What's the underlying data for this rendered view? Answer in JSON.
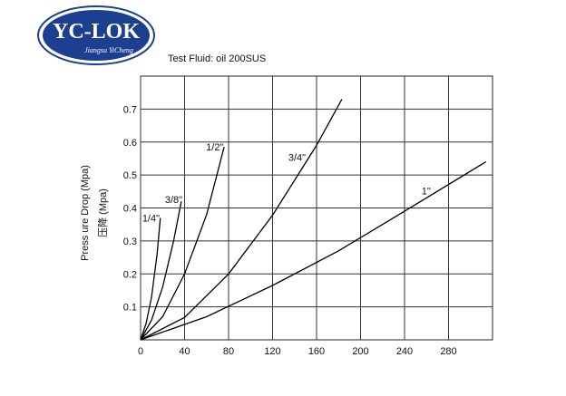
{
  "logo": {
    "name": "YC-LOK",
    "subtitle": "Jiangsu YiCheng"
  },
  "chart_data": {
    "type": "line",
    "title": "Test Fluid: oil 200SUS",
    "y_label": "Press ure Drop (Mpa)",
    "y_label_2": "压降 (Mpa)",
    "xlim": [
      0,
      320
    ],
    "xticks": [
      0,
      40,
      80,
      120,
      160,
      200,
      240,
      280
    ],
    "ylim": [
      0,
      0.8
    ],
    "yticks": [
      0.1,
      0.2,
      0.3,
      0.4,
      0.5,
      0.6,
      0.7
    ],
    "grid": true,
    "series": [
      {
        "name": "1/4\"",
        "color": "#000000",
        "x": [
          0,
          5,
          10,
          15,
          18
        ],
        "values": [
          0,
          0.05,
          0.13,
          0.26,
          0.37
        ]
      },
      {
        "name": "3/8\"",
        "color": "#000000",
        "x": [
          0,
          10,
          20,
          30,
          37
        ],
        "values": [
          0,
          0.06,
          0.16,
          0.3,
          0.42
        ]
      },
      {
        "name": "1/2\"",
        "color": "#000000",
        "x": [
          0,
          20,
          40,
          60,
          76
        ],
        "values": [
          0,
          0.07,
          0.2,
          0.38,
          0.585
        ]
      },
      {
        "name": "3/4\"",
        "color": "#000000",
        "x": [
          0,
          40,
          80,
          120,
          160,
          183
        ],
        "values": [
          0,
          0.068,
          0.2,
          0.378,
          0.59,
          0.73
        ]
      },
      {
        "name": "1\"",
        "color": "#000000",
        "x": [
          0,
          60,
          120,
          180,
          240,
          314
        ],
        "values": [
          0,
          0.07,
          0.165,
          0.27,
          0.39,
          0.54
        ]
      }
    ]
  }
}
